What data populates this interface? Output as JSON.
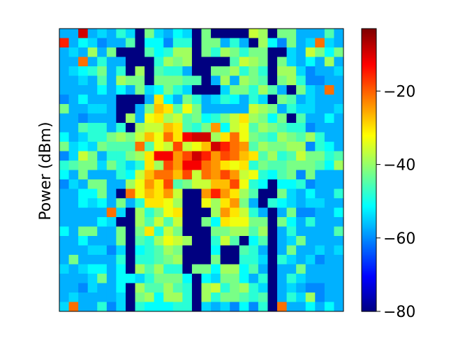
{
  "chart_data": {
    "type": "heatmap",
    "title": "",
    "xlabel": "",
    "ylabel": "Power (dBm)",
    "colormap": "jet",
    "colorbar": {
      "min": -80,
      "max": -3,
      "ticks": [
        -20,
        -40,
        -60,
        -80
      ],
      "tick_labels": [
        "−20",
        "−40",
        "−60",
        "−80"
      ]
    },
    "grid": false,
    "legend": "none",
    "dims": {
      "rows": 30,
      "cols": 30
    },
    "rows": [
      "SSCSRSPRdNRSQRdNddddLMdNNSSSOS",
      "ESQRTSSOdQQTPPdNNSPSdMQTNSRGRS",
      "SRSMSNdddOQPMMdNPMNPNNddRSLNQN",
      "SSGSPSSdddPMNMddddOLMNdNRSQSMS",
      "SRQPNSPdMdOPPSddNNMPNPdMMRTSSR",
      "SSRSOSMNNdNNNOOdSMSMNOdNMPTTSS",
      "SSSSQSQSNRQNPRdddRNNPMOSdNRSGS",
      "TSQSSSdddSJQSNPSRPQSPRdNOSRSSS",
      "NSSRRSddSNIJOKNSSSSSLMNSPRRSSR",
      "SSTSSSdMSKJMLONQPNLJMNQNdOSSQS",
      "SSOPPSPdMLLIJOPNHQLKOMNOPPTSSS",
      "QSRPPNMNLIKGJDCCMJGKNOPMNOMPSS",
      "NRQRNOOOGOKLFLKICEGHOMNNMMTPQS",
      "TRLNSPPNMJDDHFCEHFGIJOMPOLNNPO",
      "PONNRNPRPJMFHDDGHJKJPNOONNNOQM",
      "QSNSSSPQLIGGIFLGHFHLKPQONTNSSS",
      "TRSNNSSMKHJFONLLIIFKPQdQQPTSSS",
      "SSQQNSdGKIJHLddHEHJMOddNRSQSSP",
      "SSQRQSNSPJJKMddKMJHNSdPQRSRRSS",
      "SSSSSGRdMPNKJdddMHJLPSdSNTTSSQ",
      "SSSSQRddMOLOLddNQJKKNNdNQSPSSS",
      "QSNNSSNdNJPLNdddNNMMOMdSPSSSSO",
      "SSQSSSNdOPMKLMddPLOdQOdSRNSSSS",
      "SSSRRTRdQPOMNdddQddOPSdSNSSRSR",
      "SNSSSSPdPPONMdddNddPPRdPRSRTSS",
      "RSRQQSQdMOMPPdNNQMMQOSdSSNSSSS",
      "SSSRNSQQRPNNNQdQRNNQSPdSPRSSSS",
      "SSTRSSQdMOOMOPdMLPNMPRdSRSTTSS",
      "SRSSSSRdNMQMMPdMPNNOPOdSPRMTSS",
      "RGSSPTRdPQQQPPdRSRTQTPdGSSQSQS"
    ],
    "values_note": ""
  }
}
